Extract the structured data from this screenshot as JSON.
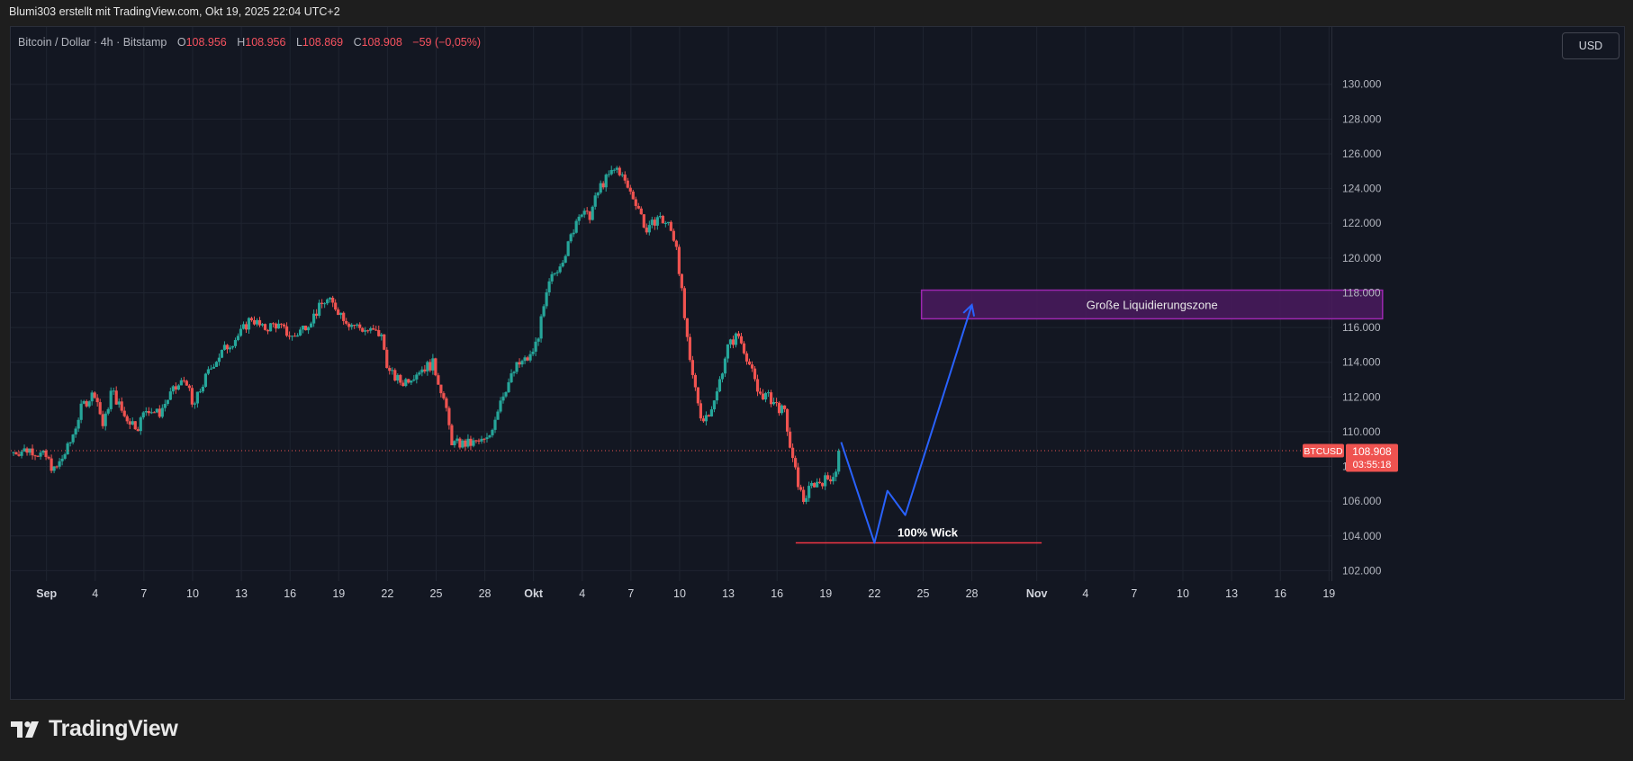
{
  "header": {
    "attribution": "Blumi303 erstellt mit TradingView.com, Okt 19, 2025 22:04 UTC+2"
  },
  "legend": {
    "symbol": "Bitcoin / Dollar · 4h · Bitstamp",
    "o_label": "O",
    "o_value": "108.956",
    "h_label": "H",
    "h_value": "108.956",
    "l_label": "L",
    "l_value": "108.869",
    "c_label": "C",
    "c_value": "108.908",
    "change": "−59 (−0,05%)"
  },
  "currency": "USD",
  "price_tag": {
    "symbol": "BTCUSD",
    "price": "108.908",
    "countdown": "03:55:18"
  },
  "branding": {
    "logo_text": "TradingView"
  },
  "colors": {
    "up": "#26a69a",
    "down": "#ef5350",
    "projection": "#2962ff",
    "zone_border": "#9c27b0",
    "zone_fill": "#4a1a5e",
    "support": "#f23645",
    "background": "#131722"
  },
  "chart_data": {
    "type": "candlestick",
    "title": "Bitcoin / Dollar · 4h · Bitstamp",
    "ylim": [
      101400,
      133300
    ],
    "y_ticks": [
      "102.000",
      "104.000",
      "106.000",
      "108.000",
      "110.000",
      "112.000",
      "114.000",
      "116.000",
      "118.000",
      "120.000",
      "122.000",
      "124.000",
      "126.000",
      "128.000",
      "130.000"
    ],
    "y_tick_values": [
      102000,
      104000,
      106000,
      108000,
      110000,
      112000,
      114000,
      116000,
      118000,
      120000,
      122000,
      124000,
      126000,
      128000,
      130000
    ],
    "x_ticks": [
      {
        "label": "Sep",
        "day": 32,
        "bold": true
      },
      {
        "label": "4",
        "day": 35
      },
      {
        "label": "7",
        "day": 38
      },
      {
        "label": "10",
        "day": 41
      },
      {
        "label": "13",
        "day": 44
      },
      {
        "label": "16",
        "day": 47
      },
      {
        "label": "19",
        "day": 50
      },
      {
        "label": "22",
        "day": 53
      },
      {
        "label": "25",
        "day": 56
      },
      {
        "label": "28",
        "day": 59
      },
      {
        "label": "Okt",
        "day": 62,
        "bold": true
      },
      {
        "label": "4",
        "day": 65
      },
      {
        "label": "7",
        "day": 68
      },
      {
        "label": "10",
        "day": 71
      },
      {
        "label": "13",
        "day": 74
      },
      {
        "label": "16",
        "day": 77
      },
      {
        "label": "19",
        "day": 80
      },
      {
        "label": "22",
        "day": 83
      },
      {
        "label": "25",
        "day": 86
      },
      {
        "label": "28",
        "day": 89
      },
      {
        "label": "Nov",
        "day": 93,
        "bold": true
      },
      {
        "label": "4",
        "day": 96
      },
      {
        "label": "7",
        "day": 99
      },
      {
        "label": "10",
        "day": 102
      },
      {
        "label": "13",
        "day": 105
      },
      {
        "label": "16",
        "day": 108
      },
      {
        "label": "19",
        "day": 111
      }
    ],
    "x_range": [
      29.8,
      111.15
    ],
    "last_day": 80.9,
    "last_price": 108908,
    "price_path": [
      [
        29.8,
        108800
      ],
      [
        31,
        109000
      ],
      [
        32,
        108500
      ],
      [
        32.5,
        107700
      ],
      [
        33.4,
        109200
      ],
      [
        34.2,
        111500
      ],
      [
        35,
        112300
      ],
      [
        35.5,
        110200
      ],
      [
        36,
        112400
      ],
      [
        36.8,
        110900
      ],
      [
        37.6,
        110300
      ],
      [
        38.2,
        111400
      ],
      [
        38.9,
        111000
      ],
      [
        39.6,
        112100
      ],
      [
        40.6,
        113100
      ],
      [
        41,
        111300
      ],
      [
        41.6,
        112700
      ],
      [
        42.3,
        114000
      ],
      [
        43.2,
        115000
      ],
      [
        44,
        115700
      ],
      [
        44.6,
        116600
      ],
      [
        45.3,
        115900
      ],
      [
        46.1,
        116200
      ],
      [
        47.2,
        115400
      ],
      [
        48.4,
        116600
      ],
      [
        49.2,
        117600
      ],
      [
        49.8,
        117200
      ],
      [
        50.6,
        116300
      ],
      [
        51.5,
        115900
      ],
      [
        52.6,
        115600
      ],
      [
        53.1,
        113400
      ],
      [
        53.9,
        112800
      ],
      [
        55,
        113600
      ],
      [
        55.8,
        113900
      ],
      [
        56.4,
        112200
      ],
      [
        57,
        109300
      ],
      [
        58.1,
        109300
      ],
      [
        59.2,
        109500
      ],
      [
        60,
        112000
      ],
      [
        61,
        113800
      ],
      [
        61.8,
        114300
      ],
      [
        62.2,
        115200
      ],
      [
        63,
        118600
      ],
      [
        64.1,
        120600
      ],
      [
        64.8,
        122700
      ],
      [
        65.4,
        122300
      ],
      [
        66.1,
        124100
      ],
      [
        66.8,
        124900
      ],
      [
        67.2,
        125200
      ],
      [
        67.7,
        124200
      ],
      [
        68.4,
        123100
      ],
      [
        69,
        121400
      ],
      [
        69.6,
        122400
      ],
      [
        70.3,
        121900
      ],
      [
        70.8,
        120800
      ],
      [
        71.6,
        114000
      ],
      [
        72.4,
        110600
      ],
      [
        73.2,
        111800
      ],
      [
        73.9,
        114800
      ],
      [
        74.6,
        115600
      ],
      [
        75.2,
        114200
      ],
      [
        75.8,
        112300
      ],
      [
        76.6,
        111900
      ],
      [
        77.5,
        111000
      ],
      [
        77.9,
        108500
      ],
      [
        78.6,
        106000
      ],
      [
        79.2,
        107000
      ],
      [
        80.2,
        107300
      ],
      [
        80.6,
        107700
      ],
      [
        80.9,
        108900
      ]
    ],
    "projection_path": [
      {
        "day": 80.95,
        "price": 109400
      },
      {
        "day": 83.0,
        "price": 103600
      },
      {
        "day": 83.8,
        "price": 106600
      },
      {
        "day": 84.9,
        "price": 105200
      },
      {
        "day": 89.0,
        "price": 117300
      }
    ],
    "liquidation_zone": {
      "label": "Große Liquidierungszone",
      "start_day": 85.9,
      "end_day": 114.3,
      "low": 116500,
      "high": 118150
    },
    "support_line": {
      "label": "100% Wick",
      "start_day": 78.15,
      "end_day": 93.3,
      "price": 103600
    }
  }
}
